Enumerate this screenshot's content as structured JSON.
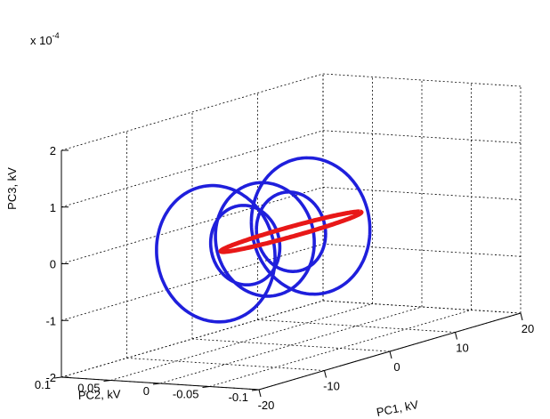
{
  "chart_data": {
    "type": "line3d",
    "title": "",
    "xlabel": "PC1, kV",
    "ylabel": "PC2, kV",
    "zlabel": "PC3, kV",
    "z_exponent_label": "x 10",
    "z_exponent_power": "-4",
    "xlim": [
      -20,
      20
    ],
    "ylim": [
      -0.1,
      0.1
    ],
    "zlim": [
      -2,
      2
    ],
    "xticks": [
      "-20",
      "-10",
      "0",
      "10",
      "20"
    ],
    "yticks": [
      "-0.1",
      "-0.05",
      "0",
      "0.05",
      "0.1"
    ],
    "zticks": [
      "-2",
      "-1",
      "0",
      "1",
      "2"
    ],
    "grid": true,
    "series": [
      {
        "color": "#1f1fdc",
        "rings": [
          {
            "pc1": -11.5,
            "pc2": 0.0,
            "pc3_radius": 1.2,
            "pc2_radius": 0.06
          },
          {
            "pc1": -4.0,
            "pc2": 0.0,
            "pc3_radius": 1.0,
            "pc2_radius": 0.05
          },
          {
            "pc1": 3.0,
            "pc2": 0.0,
            "pc3_radius": 1.2,
            "pc2_radius": 0.06
          },
          {
            "pc1": -7.0,
            "pc2": 0.0,
            "pc3_radius": 0.7,
            "pc2_radius": 0.035
          },
          {
            "pc1": 0.0,
            "pc2": 0.0,
            "pc3_radius": 0.7,
            "pc2_radius": 0.035
          }
        ]
      },
      {
        "color": "#e81818",
        "rings": [
          {
            "pc3": 0.0,
            "pc1_radius": 10.5,
            "pc2_radius": 0.015
          }
        ]
      }
    ]
  }
}
